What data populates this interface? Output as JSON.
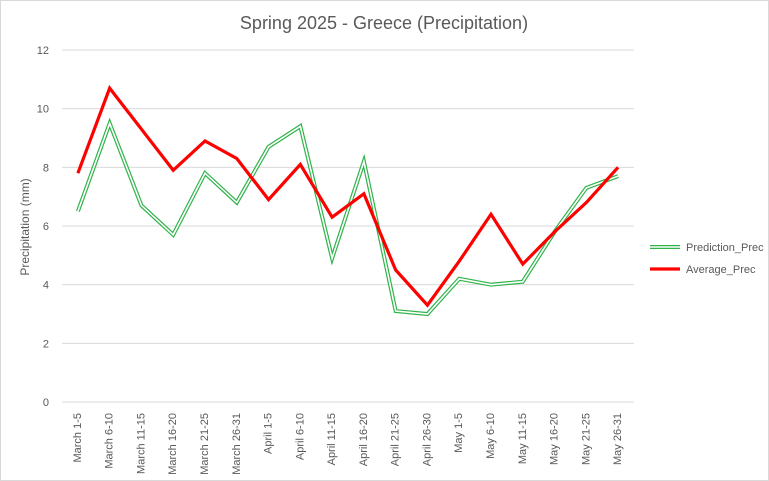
{
  "chart_data": {
    "type": "line",
    "title": "Spring 2025 - Greece (Precipitation)",
    "xlabel": "",
    "ylabel": "Precipitation (mm)",
    "ylim": [
      0,
      12
    ],
    "yticks": [
      0,
      2,
      4,
      6,
      8,
      10,
      12
    ],
    "grid": true,
    "legend_position": "right",
    "categories": [
      "March 1-5",
      "March 6-10",
      "March 11-15",
      "March 16-20",
      "March 21-25",
      "March 26-31",
      "April 1-5",
      "April 6-10",
      "April 11-15",
      "April 16-20",
      "April 21-25",
      "April 26-30",
      "May 1-5",
      "May 6-10",
      "May 11-15",
      "May 16-20",
      "May 21-25",
      "May 26-31"
    ],
    "series": [
      {
        "name": "Prediction_Prec",
        "color": "#2fb34a",
        "values": [
          6.5,
          9.5,
          6.7,
          5.7,
          7.8,
          6.8,
          8.7,
          9.4,
          4.9,
          8.2,
          3.1,
          3.0,
          4.2,
          4.0,
          4.1,
          5.8,
          7.3,
          7.7
        ]
      },
      {
        "name": "Average_Prec",
        "color": "#ff0000",
        "values": [
          7.8,
          10.7,
          9.3,
          7.9,
          8.9,
          8.3,
          6.9,
          8.1,
          6.3,
          7.1,
          4.5,
          3.3,
          4.8,
          6.4,
          4.7,
          5.8,
          6.8,
          8.0
        ]
      }
    ]
  }
}
